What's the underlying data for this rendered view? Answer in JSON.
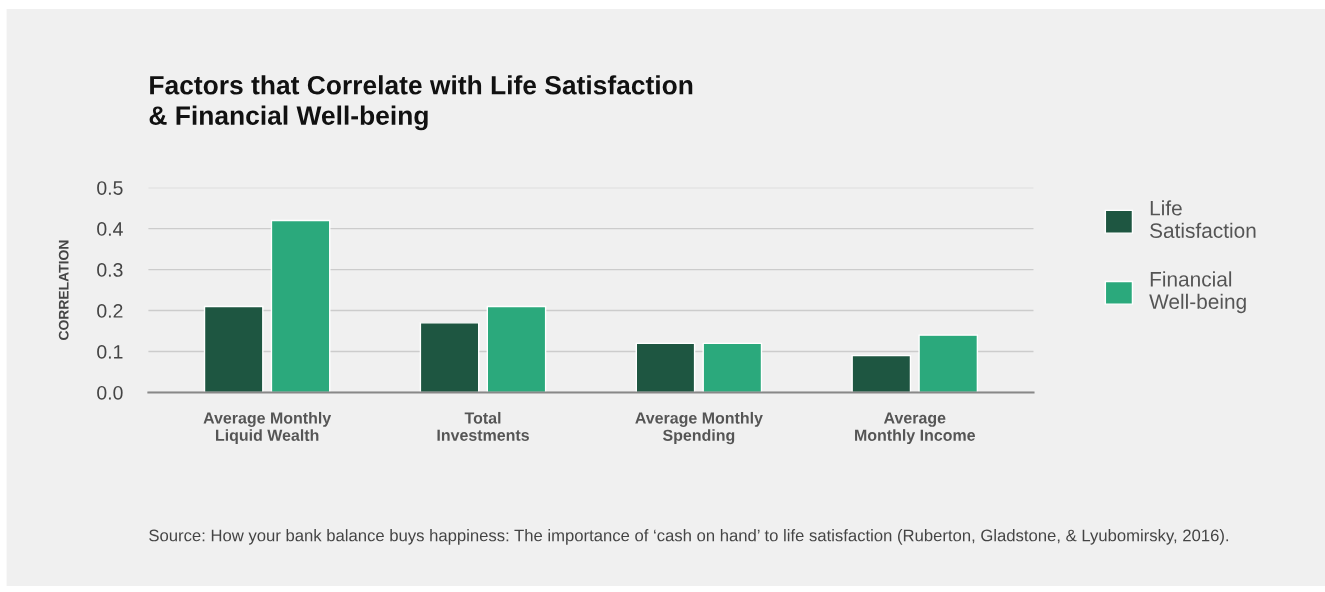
{
  "chart_data": {
    "type": "bar",
    "title": "Factors that Correlate with Life Satisfaction\n& Financial Well-being",
    "ylabel": "CORRELATION",
    "categories": [
      "Average Monthly Liquid Wealth",
      "Total Investments",
      "Average Monthly Spending",
      "Average Monthly Income"
    ],
    "series": [
      {
        "name": "Life Satisfaction",
        "color": "#1e5641",
        "values": [
          0.21,
          0.17,
          0.12,
          0.09
        ]
      },
      {
        "name": "Financial Well-being",
        "color": "#2ba97c",
        "values": [
          0.42,
          0.21,
          0.12,
          0.14
        ]
      }
    ],
    "ylim": [
      0,
      0.5
    ],
    "yticks": [
      {
        "value": 0,
        "label": "0.0"
      },
      0.1,
      0.2,
      0.3,
      0.4,
      0.5
    ],
    "grid": "y",
    "legend": "top right",
    "annotations": [
      "Source: How your bank balance buys happiness: The importance of ‘cash on hand’ to life satisfaction (Ruberton, Gladstone, & Lyubomirsky, 2016)."
    ]
  }
}
